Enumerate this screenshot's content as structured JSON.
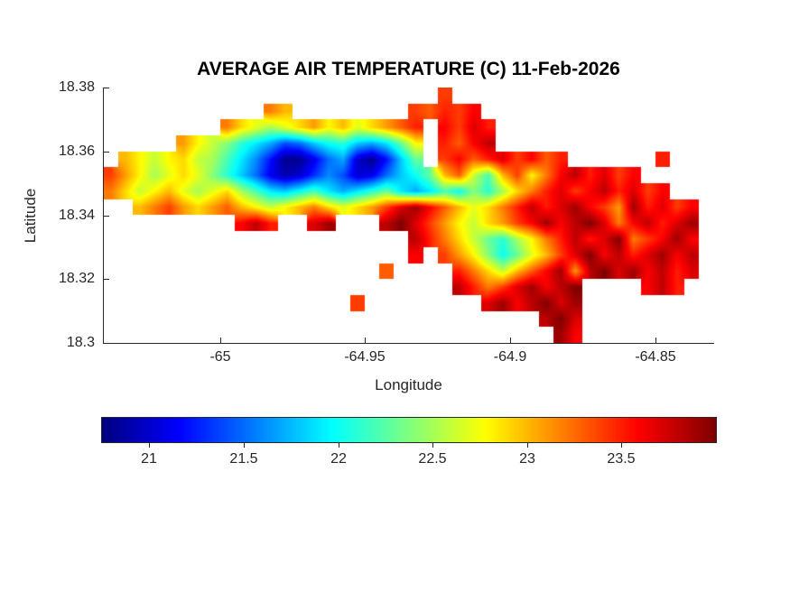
{
  "figure": {
    "background": "#ffffff"
  },
  "colors": {
    "axis": "#262626",
    "title_text": "#000000",
    "background": "#ffffff"
  },
  "chart_data": {
    "type": "heatmap",
    "title": "AVERAGE AIR TEMPERATURE (C) 11-Feb-2026",
    "xlabel": "Longitude",
    "ylabel": "Latitude",
    "xlim": [
      -65.04,
      -64.83
    ],
    "ylim": [
      18.3,
      18.38
    ],
    "xticks": [
      -65,
      -64.95,
      -64.9,
      -64.85
    ],
    "xtick_labels": [
      "-65",
      "-64.95",
      "-64.9",
      "-64.85"
    ],
    "yticks": [
      18.3,
      18.32,
      18.34,
      18.36,
      18.38
    ],
    "ytick_labels": [
      "18.3",
      "18.32",
      "18.34",
      "18.36",
      "18.38"
    ],
    "colormap": "jet",
    "units": "C",
    "legend_position": "horizontal colorbar below axes",
    "grid_lines": false,
    "colorbar": {
      "orientation": "horizontal",
      "vmin": 20.75,
      "vmax": 24.0,
      "ticks": [
        21,
        21.5,
        22,
        22.5,
        23,
        23.5
      ],
      "tick_labels": [
        "21",
        "21.5",
        "22",
        "22.5",
        "23",
        "23.5"
      ]
    },
    "grid": {
      "comment": "Average air temperature (deg C) on a lon/lat grid; null = sea (no data). Rows top-to-bottom from lat 18.38 to 18.30, cols left-to-right from lon -65.04 to -64.83, cell size 0.005 deg.",
      "nrows": 16,
      "ncols": 42,
      "lon_start": -65.04,
      "lon_step": 0.005,
      "lat_start": 18.38,
      "lat_step": -0.005,
      "values": [
        [
          null,
          null,
          null,
          null,
          null,
          null,
          null,
          null,
          null,
          null,
          null,
          null,
          null,
          null,
          null,
          null,
          null,
          null,
          null,
          null,
          null,
          null,
          null,
          23.4,
          null,
          null,
          null,
          null,
          null,
          null,
          null,
          null,
          null,
          null,
          null,
          null,
          null,
          null,
          null,
          null,
          null,
          null
        ],
        [
          null,
          null,
          null,
          null,
          null,
          null,
          null,
          null,
          null,
          null,
          null,
          23.2,
          23.0,
          null,
          null,
          null,
          null,
          null,
          null,
          null,
          null,
          23.4,
          23.3,
          23.5,
          23.4,
          23.6,
          null,
          null,
          null,
          null,
          null,
          null,
          null,
          null,
          null,
          null,
          null,
          null,
          null,
          null,
          null,
          null
        ],
        [
          null,
          null,
          null,
          null,
          null,
          null,
          null,
          null,
          23.2,
          22.9,
          22.7,
          22.5,
          22.7,
          22.9,
          23.1,
          22.8,
          23.0,
          22.7,
          22.9,
          23.1,
          23.3,
          23.5,
          null,
          23.6,
          23.4,
          23.7,
          23.5,
          null,
          null,
          null,
          null,
          null,
          null,
          null,
          null,
          null,
          null,
          null,
          null,
          null,
          null,
          null
        ],
        [
          null,
          null,
          null,
          null,
          null,
          23.1,
          22.8,
          22.6,
          22.4,
          22.1,
          21.9,
          21.7,
          21.4,
          21.5,
          21.8,
          22.0,
          22.1,
          21.8,
          21.7,
          21.9,
          22.3,
          22.8,
          null,
          23.5,
          23.3,
          23.6,
          23.8,
          null,
          null,
          null,
          null,
          null,
          null,
          null,
          null,
          null,
          null,
          null,
          null,
          null,
          null,
          null
        ],
        [
          null,
          23.0,
          22.8,
          22.6,
          22.8,
          22.9,
          22.6,
          22.5,
          22.2,
          21.9,
          21.6,
          21.2,
          20.8,
          20.8,
          21.1,
          21.5,
          21.7,
          21.0,
          20.8,
          21.2,
          21.8,
          22.3,
          null,
          23.4,
          23.6,
          23.3,
          23.5,
          23.7,
          23.4,
          23.6,
          23.3,
          23.5,
          null,
          null,
          null,
          null,
          null,
          null,
          23.5,
          null,
          null,
          null
        ],
        [
          23.4,
          23.1,
          22.8,
          22.5,
          22.7,
          22.9,
          22.7,
          22.4,
          22.1,
          21.8,
          21.5,
          21.1,
          20.9,
          21.0,
          21.3,
          21.6,
          21.4,
          21.0,
          21.1,
          21.5,
          21.8,
          22.0,
          22.3,
          23.0,
          23.3,
          22.6,
          22.2,
          23.0,
          23.4,
          22.8,
          23.2,
          23.6,
          23.8,
          23.5,
          23.7,
          23.4,
          23.6,
          null,
          null,
          null,
          null,
          null
        ],
        [
          23.2,
          22.9,
          22.6,
          22.8,
          23.0,
          22.7,
          22.5,
          22.7,
          22.9,
          22.5,
          22.2,
          21.9,
          21.8,
          22.0,
          22.2,
          21.9,
          21.7,
          21.9,
          22.1,
          22.3,
          21.9,
          21.7,
          21.9,
          22.2,
          22.0,
          22.4,
          22.1,
          22.5,
          22.9,
          23.2,
          23.5,
          23.7,
          23.4,
          23.6,
          23.8,
          23.5,
          23.7,
          23.4,
          23.6,
          null,
          null,
          null
        ],
        [
          null,
          null,
          23.0,
          23.2,
          23.4,
          23.1,
          22.9,
          23.1,
          23.3,
          23.0,
          22.8,
          22.6,
          22.8,
          23.0,
          23.2,
          22.9,
          22.7,
          22.9,
          23.1,
          23.4,
          23.7,
          23.9,
          23.6,
          23.3,
          23.0,
          22.7,
          22.9,
          23.2,
          23.5,
          23.8,
          23.5,
          23.7,
          23.9,
          23.6,
          23.4,
          23.1,
          23.9,
          23.5,
          23.7,
          23.4,
          23.6,
          null
        ],
        [
          null,
          null,
          null,
          null,
          null,
          null,
          null,
          null,
          null,
          23.6,
          23.8,
          23.5,
          null,
          null,
          23.7,
          23.9,
          null,
          null,
          null,
          23.8,
          24.0,
          23.7,
          23.4,
          23.1,
          22.8,
          22.6,
          22.9,
          23.1,
          23.4,
          23.6,
          23.9,
          23.6,
          23.8,
          24.0,
          23.7,
          23.2,
          23.6,
          23.8,
          23.5,
          23.7,
          23.9,
          null
        ],
        [
          null,
          null,
          null,
          null,
          null,
          null,
          null,
          null,
          null,
          null,
          null,
          null,
          null,
          null,
          null,
          null,
          null,
          null,
          null,
          null,
          null,
          23.8,
          23.5,
          23.2,
          22.9,
          22.6,
          22.3,
          22.1,
          22.5,
          22.8,
          23.2,
          23.5,
          23.8,
          23.5,
          23.7,
          24.0,
          23.2,
          23.4,
          23.6,
          23.9,
          23.6,
          null
        ],
        [
          null,
          null,
          null,
          null,
          null,
          null,
          null,
          null,
          null,
          null,
          null,
          null,
          null,
          null,
          null,
          null,
          null,
          null,
          null,
          null,
          null,
          23.6,
          null,
          23.4,
          23.1,
          22.8,
          22.4,
          22.0,
          22.3,
          22.7,
          23.0,
          23.4,
          23.7,
          24.0,
          23.6,
          23.8,
          23.5,
          23.7,
          23.9,
          23.6,
          23.8,
          null
        ],
        [
          null,
          null,
          null,
          null,
          null,
          null,
          null,
          null,
          null,
          null,
          null,
          null,
          null,
          null,
          null,
          null,
          null,
          null,
          null,
          23.3,
          null,
          null,
          null,
          null,
          23.5,
          23.2,
          22.9,
          22.6,
          23.0,
          23.3,
          23.6,
          23.9,
          23.1,
          23.8,
          24.0,
          23.7,
          23.9,
          23.6,
          23.8,
          23.5,
          23.7,
          null
        ],
        [
          null,
          null,
          null,
          null,
          null,
          null,
          null,
          null,
          null,
          null,
          null,
          null,
          null,
          null,
          null,
          null,
          null,
          null,
          null,
          null,
          null,
          null,
          null,
          null,
          23.8,
          23.5,
          23.2,
          23.4,
          23.7,
          23.9,
          23.6,
          23.8,
          24.0,
          null,
          null,
          null,
          null,
          23.6,
          23.8,
          23.5,
          null,
          null
        ],
        [
          null,
          null,
          null,
          null,
          null,
          null,
          null,
          null,
          null,
          null,
          null,
          null,
          null,
          null,
          null,
          null,
          null,
          23.4,
          null,
          null,
          null,
          null,
          null,
          null,
          null,
          null,
          23.7,
          23.9,
          23.6,
          23.8,
          24.0,
          23.7,
          23.9,
          null,
          null,
          null,
          null,
          null,
          null,
          null,
          null,
          null
        ],
        [
          null,
          null,
          null,
          null,
          null,
          null,
          null,
          null,
          null,
          null,
          null,
          null,
          null,
          null,
          null,
          null,
          null,
          null,
          null,
          null,
          null,
          null,
          null,
          null,
          null,
          null,
          null,
          null,
          null,
          null,
          23.8,
          24.0,
          23.7,
          null,
          null,
          null,
          null,
          null,
          null,
          null,
          null,
          null
        ],
        [
          null,
          null,
          null,
          null,
          null,
          null,
          null,
          null,
          null,
          null,
          null,
          null,
          null,
          null,
          null,
          null,
          null,
          null,
          null,
          null,
          null,
          null,
          null,
          null,
          null,
          null,
          null,
          null,
          null,
          null,
          null,
          23.9,
          23.6,
          null,
          null,
          null,
          null,
          null,
          null,
          null,
          null,
          null
        ]
      ]
    }
  }
}
